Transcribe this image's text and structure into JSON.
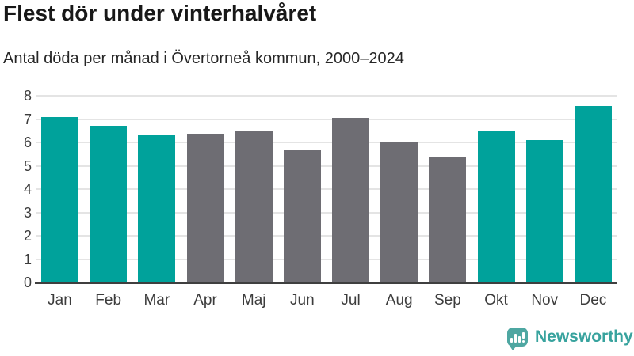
{
  "chart_data": {
    "type": "bar",
    "title": "Flest dör under vinterhalvåret",
    "subtitle": "Antal döda per månad i Övertorneå kommun, 2000–2024",
    "categories": [
      "Jan",
      "Feb",
      "Mar",
      "Apr",
      "Maj",
      "Jun",
      "Jul",
      "Aug",
      "Sep",
      "Okt",
      "Nov",
      "Dec"
    ],
    "values": [
      7.1,
      6.7,
      6.3,
      6.35,
      6.5,
      5.7,
      7.05,
      6.0,
      5.4,
      6.5,
      6.1,
      7.55
    ],
    "bar_groups": [
      "winter",
      "winter",
      "winter",
      "summer",
      "summer",
      "summer",
      "summer",
      "summer",
      "summer",
      "winter",
      "winter",
      "winter"
    ],
    "colors": {
      "winter": "#00a29b",
      "summer": "#6e6d73"
    },
    "xlabel": "",
    "ylabel": "",
    "ylim": [
      0,
      8
    ],
    "yticks": [
      0,
      1,
      2,
      3,
      4,
      5,
      6,
      7,
      8
    ],
    "grid": true,
    "legend": "none",
    "gridline_color": "#e4e4e4",
    "baseline_color": "#3f3f3f"
  },
  "footer": {
    "brand": "Newsworthy",
    "logo_icon": "bar-chart-speech-bubble-icon",
    "brand_text_color": "#38a39e",
    "brand_icon_color": "#4ea7a2"
  }
}
